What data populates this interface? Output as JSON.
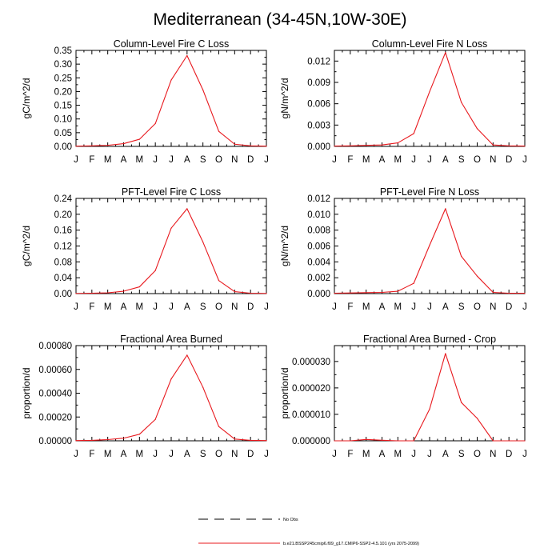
{
  "title": "Mediterranean (34-45N,10W-30E)",
  "chart_data": [
    {
      "type": "line",
      "title": "Column-Level Fire C Loss",
      "xlabel": "",
      "ylabel": "gC/m^2/d",
      "categories": [
        "J",
        "F",
        "M",
        "A",
        "M",
        "J",
        "J",
        "A",
        "S",
        "O",
        "N",
        "D",
        "J"
      ],
      "ylim": [
        0,
        0.35
      ],
      "yticks": [
        0,
        0.05,
        0.1,
        0.15,
        0.2,
        0.25,
        0.3,
        0.35
      ],
      "ytick_labels": [
        "0.00",
        "0.05",
        "0.10",
        "0.15",
        "0.20",
        "0.25",
        "0.30",
        "0.35"
      ],
      "series": [
        {
          "name": "b.e21.BSSP245cmip6.f09_g17.CMIP6-SSP2-4.5.101 (yrs 2075-2099)",
          "color": "#e8191e",
          "values": [
            0.001,
            0.002,
            0.004,
            0.01,
            0.026,
            0.083,
            0.242,
            0.331,
            0.206,
            0.055,
            0.008,
            0.002,
            0.001
          ]
        }
      ]
    },
    {
      "type": "line",
      "title": "Column-Level Fire N Loss",
      "xlabel": "",
      "ylabel": "gN/m^2/d",
      "categories": [
        "J",
        "F",
        "M",
        "A",
        "M",
        "J",
        "J",
        "A",
        "S",
        "O",
        "N",
        "D",
        "J"
      ],
      "ylim": [
        0,
        0.0135
      ],
      "yticks": [
        0,
        0.003,
        0.006,
        0.009,
        0.012
      ],
      "ytick_labels": [
        "0.000",
        "0.003",
        "0.006",
        "0.009",
        "0.012"
      ],
      "series": [
        {
          "name": "b.e21.BSSP245cmip6.f09_g17.CMIP6-SSP2-4.5.101 (yrs 2075-2099)",
          "color": "#e8191e",
          "values": [
            5e-05,
            8e-05,
            0.00015,
            0.0002,
            0.0005,
            0.0018,
            0.0077,
            0.0132,
            0.0062,
            0.0025,
            0.0002,
            8e-05,
            5e-05
          ]
        }
      ]
    },
    {
      "type": "line",
      "title": "PFT-Level Fire C Loss",
      "xlabel": "",
      "ylabel": "gC/m^2/d",
      "categories": [
        "J",
        "F",
        "M",
        "A",
        "M",
        "J",
        "J",
        "A",
        "S",
        "O",
        "N",
        "D",
        "J"
      ],
      "ylim": [
        0,
        0.24
      ],
      "yticks": [
        0,
        0.04,
        0.08,
        0.12,
        0.16,
        0.2,
        0.24
      ],
      "ytick_labels": [
        "0.00",
        "0.04",
        "0.08",
        "0.12",
        "0.16",
        "0.20",
        "0.24"
      ],
      "series": [
        {
          "name": "b.e21.BSSP245cmip6.f09_g17.CMIP6-SSP2-4.5.101 (yrs 2075-2099)",
          "color": "#e8191e",
          "values": [
            0.0005,
            0.001,
            0.002,
            0.006,
            0.017,
            0.058,
            0.165,
            0.214,
            0.13,
            0.033,
            0.005,
            0.001,
            0.0005
          ]
        }
      ]
    },
    {
      "type": "line",
      "title": "PFT-Level Fire N Loss",
      "xlabel": "",
      "ylabel": "gN/m^2/d",
      "categories": [
        "J",
        "F",
        "M",
        "A",
        "M",
        "J",
        "J",
        "A",
        "S",
        "O",
        "N",
        "D",
        "J"
      ],
      "ylim": [
        0,
        0.012
      ],
      "yticks": [
        0,
        0.002,
        0.004,
        0.006,
        0.008,
        0.01,
        0.012
      ],
      "ytick_labels": [
        "0.000",
        "0.002",
        "0.004",
        "0.006",
        "0.008",
        "0.010",
        "0.012"
      ],
      "series": [
        {
          "name": "b.e21.BSSP245cmip6.f09_g17.CMIP6-SSP2-4.5.101 (yrs 2075-2099)",
          "color": "#e8191e",
          "values": [
            5e-05,
            8e-05,
            0.00012,
            0.00015,
            0.0003,
            0.0013,
            0.0061,
            0.0107,
            0.0047,
            0.0022,
            0.00015,
            5e-05,
            5e-05
          ]
        }
      ]
    },
    {
      "type": "line",
      "title": "Fractional Area Burned",
      "xlabel": "",
      "ylabel": "proportion/d",
      "categories": [
        "J",
        "F",
        "M",
        "A",
        "M",
        "J",
        "J",
        "A",
        "S",
        "O",
        "N",
        "D",
        "J"
      ],
      "ylim": [
        0,
        0.0008
      ],
      "yticks": [
        0,
        0.0002,
        0.0004,
        0.0006,
        0.0008
      ],
      "ytick_labels": [
        "0.00000",
        "0.00020",
        "0.00040",
        "0.00060",
        "0.00080"
      ],
      "series": [
        {
          "name": "b.e21.BSSP245cmip6.f09_g17.CMIP6-SSP2-4.5.101 (yrs 2075-2099)",
          "color": "#e8191e",
          "values": [
            2e-06,
            4e-06,
            1e-05,
            2.2e-05,
            5.5e-05,
            0.00018,
            0.00052,
            0.00072,
            0.00045,
            0.00012,
            1.5e-05,
            4e-06,
            2e-06
          ]
        }
      ]
    },
    {
      "type": "line",
      "title": "Fractional Area Burned - Crop",
      "xlabel": "",
      "ylabel": "proportion/d",
      "categories": [
        "J",
        "F",
        "M",
        "A",
        "M",
        "J",
        "J",
        "A",
        "S",
        "O",
        "N",
        "D",
        "J"
      ],
      "ylim": [
        0,
        3.6e-05
      ],
      "yticks": [
        0,
        1e-05,
        2e-05,
        3e-05
      ],
      "ytick_labels": [
        "0.000000",
        "0.000010",
        "0.000020",
        "0.000030"
      ],
      "series": [
        {
          "name": "b.e21.BSSP245cmip6.f09_g17.CMIP6-SSP2-4.5.101 (yrs 2075-2099)",
          "color": "#e8191e",
          "values": [
            0,
            0,
            5e-07,
            2e-07,
            0,
            0,
            1.2e-05,
            3.3e-05,
            1.45e-05,
            8.5e-06,
            0,
            0,
            0
          ]
        }
      ]
    }
  ],
  "legend": [
    {
      "label": "No Obs",
      "style": "dashed",
      "color": "#000000"
    },
    {
      "label": "b.e21.BSSP245cmip6.f09_g17.CMIP6-SSP2-4.5.101 (yrs 2075-2099)",
      "style": "solid",
      "color": "#e8191e"
    }
  ]
}
